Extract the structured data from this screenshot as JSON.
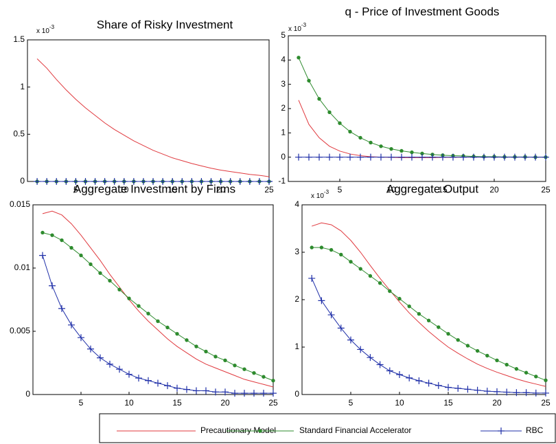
{
  "chart_data": [
    {
      "type": "line",
      "title": "Share of Risky Investment",
      "scale_label": {
        "base": "x 10",
        "exponent": "-3"
      },
      "x": [
        1,
        2,
        3,
        4,
        5,
        6,
        7,
        8,
        9,
        10,
        11,
        12,
        13,
        14,
        15,
        16,
        17,
        18,
        19,
        20,
        21,
        22,
        23,
        24,
        25
      ],
      "xlim": [
        0,
        25
      ],
      "xticks": [
        5,
        10,
        15,
        20,
        25
      ],
      "ylim": [
        0,
        1.5
      ],
      "yticks": [
        0,
        0.5,
        1,
        1.5
      ],
      "series": [
        {
          "color": "#e0393e",
          "marker": "none",
          "values": [
            1.3,
            1.2,
            1.08,
            0.97,
            0.87,
            0.78,
            0.7,
            0.62,
            0.55,
            0.49,
            0.43,
            0.38,
            0.33,
            0.29,
            0.25,
            0.22,
            0.19,
            0.165,
            0.14,
            0.12,
            0.105,
            0.09,
            0.075,
            0.065,
            0.05
          ]
        },
        {
          "color": "#2e8b2e",
          "marker": "dot",
          "values": [
            0,
            0,
            0,
            0,
            0,
            0,
            0,
            0,
            0,
            0,
            0,
            0,
            0,
            0,
            0,
            0,
            0,
            0,
            0,
            0,
            0,
            0,
            0,
            0,
            0
          ]
        },
        {
          "color": "#1f2fa8",
          "marker": "plus",
          "values": [
            0,
            0,
            0,
            0,
            0,
            0,
            0,
            0,
            0,
            0,
            0,
            0,
            0,
            0,
            0,
            0,
            0,
            0,
            0,
            0,
            0,
            0,
            0,
            0,
            0
          ]
        }
      ]
    },
    {
      "type": "line",
      "title": "q - Price of Investment Goods",
      "scale_label": {
        "base": "x 10",
        "exponent": "-3"
      },
      "x": [
        1,
        2,
        3,
        4,
        5,
        6,
        7,
        8,
        9,
        10,
        11,
        12,
        13,
        14,
        15,
        16,
        17,
        18,
        19,
        20,
        21,
        22,
        23,
        24,
        25
      ],
      "xlim": [
        0,
        25
      ],
      "xticks": [
        5,
        10,
        15,
        20,
        25
      ],
      "ylim": [
        -1,
        5
      ],
      "yticks": [
        -1,
        0,
        1,
        2,
        3,
        4,
        5
      ],
      "series": [
        {
          "color": "#e0393e",
          "marker": "none",
          "values": [
            2.35,
            1.35,
            0.8,
            0.45,
            0.25,
            0.13,
            0.06,
            0.02,
            0,
            -0.01,
            -0.02,
            -0.02,
            -0.02,
            -0.02,
            -0.01,
            -0.01,
            0,
            0,
            0,
            0,
            0,
            0,
            0,
            0,
            0
          ]
        },
        {
          "color": "#2e8b2e",
          "marker": "dot",
          "values": [
            4.1,
            3.15,
            2.4,
            1.85,
            1.4,
            1.05,
            0.8,
            0.6,
            0.45,
            0.34,
            0.26,
            0.2,
            0.15,
            0.11,
            0.08,
            0.06,
            0.05,
            0.03,
            0.02,
            0.02,
            0.01,
            0.01,
            0.01,
            0,
            0
          ]
        },
        {
          "color": "#1f2fa8",
          "marker": "plus",
          "values": [
            0,
            0,
            0,
            0,
            0,
            0,
            0,
            0,
            0,
            0,
            0,
            0,
            0,
            0,
            0,
            0,
            0,
            0,
            0,
            0,
            0,
            0,
            0,
            0,
            0
          ]
        }
      ]
    },
    {
      "type": "line",
      "title": "Aggregate Investment by Firms",
      "x": [
        1,
        2,
        3,
        4,
        5,
        6,
        7,
        8,
        9,
        10,
        11,
        12,
        13,
        14,
        15,
        16,
        17,
        18,
        19,
        20,
        21,
        22,
        23,
        24,
        25
      ],
      "xlim": [
        0,
        25
      ],
      "xticks": [
        5,
        10,
        15,
        20,
        25
      ],
      "ylim": [
        0,
        0.015
      ],
      "yticks": [
        0,
        0.005,
        0.01,
        0.015
      ],
      "series": [
        {
          "color": "#e0393e",
          "marker": "none",
          "values": [
            0.0143,
            0.0145,
            0.0142,
            0.0135,
            0.0126,
            0.0116,
            0.0106,
            0.0095,
            0.0085,
            0.0075,
            0.0066,
            0.0058,
            0.0051,
            0.0044,
            0.0038,
            0.0033,
            0.0028,
            0.0024,
            0.0021,
            0.0018,
            0.0015,
            0.0012,
            0.001,
            0.0008,
            0.0006
          ]
        },
        {
          "color": "#2e8b2e",
          "marker": "dot",
          "values": [
            0.0128,
            0.0126,
            0.0122,
            0.0116,
            0.011,
            0.0103,
            0.0096,
            0.009,
            0.0083,
            0.0076,
            0.007,
            0.0064,
            0.0058,
            0.0053,
            0.0048,
            0.0043,
            0.0038,
            0.0034,
            0.003,
            0.0027,
            0.0023,
            0.002,
            0.0017,
            0.0014,
            0.0011
          ]
        },
        {
          "color": "#1f2fa8",
          "marker": "plus",
          "values": [
            0.011,
            0.0086,
            0.0068,
            0.0055,
            0.0045,
            0.0036,
            0.0029,
            0.0024,
            0.002,
            0.0016,
            0.0013,
            0.0011,
            0.0009,
            0.0007,
            0.0005,
            0.0004,
            0.0003,
            0.0003,
            0.0002,
            0.0002,
            0.0001,
            0.0001,
            0.0001,
            0.0001,
            0.0001
          ]
        }
      ]
    },
    {
      "type": "line",
      "title": "Aggregate Output",
      "scale_label": {
        "base": "x 10",
        "exponent": "-3"
      },
      "x": [
        1,
        2,
        3,
        4,
        5,
        6,
        7,
        8,
        9,
        10,
        11,
        12,
        13,
        14,
        15,
        16,
        17,
        18,
        19,
        20,
        21,
        22,
        23,
        24,
        25
      ],
      "xlim": [
        0,
        25
      ],
      "xticks": [
        5,
        10,
        15,
        20,
        25
      ],
      "ylim": [
        0,
        4
      ],
      "yticks": [
        0,
        1,
        2,
        3,
        4
      ],
      "series": [
        {
          "color": "#e0393e",
          "marker": "none",
          "values": [
            3.55,
            3.62,
            3.58,
            3.45,
            3.25,
            3.0,
            2.72,
            2.45,
            2.2,
            1.95,
            1.72,
            1.52,
            1.33,
            1.16,
            1.0,
            0.87,
            0.75,
            0.64,
            0.55,
            0.47,
            0.4,
            0.33,
            0.27,
            0.22,
            0.17
          ]
        },
        {
          "color": "#2e8b2e",
          "marker": "dot",
          "values": [
            3.1,
            3.1,
            3.05,
            2.95,
            2.8,
            2.65,
            2.5,
            2.35,
            2.18,
            2.02,
            1.86,
            1.7,
            1.56,
            1.42,
            1.28,
            1.15,
            1.03,
            0.92,
            0.82,
            0.72,
            0.63,
            0.54,
            0.46,
            0.38,
            0.3
          ]
        },
        {
          "color": "#1f2fa8",
          "marker": "plus",
          "values": [
            2.45,
            1.98,
            1.68,
            1.4,
            1.15,
            0.95,
            0.78,
            0.63,
            0.5,
            0.42,
            0.35,
            0.29,
            0.24,
            0.19,
            0.15,
            0.13,
            0.11,
            0.09,
            0.07,
            0.06,
            0.05,
            0.04,
            0.04,
            0.03,
            0.03
          ]
        }
      ]
    }
  ],
  "legend": {
    "entries": [
      {
        "name": "Precautionary Model",
        "color": "#e0393e",
        "marker": "none"
      },
      {
        "name": "Standard Financial Accelerator",
        "color": "#2e8b2e",
        "marker": "dot"
      },
      {
        "name": "RBC",
        "color": "#1f2fa8",
        "marker": "plus"
      }
    ]
  }
}
